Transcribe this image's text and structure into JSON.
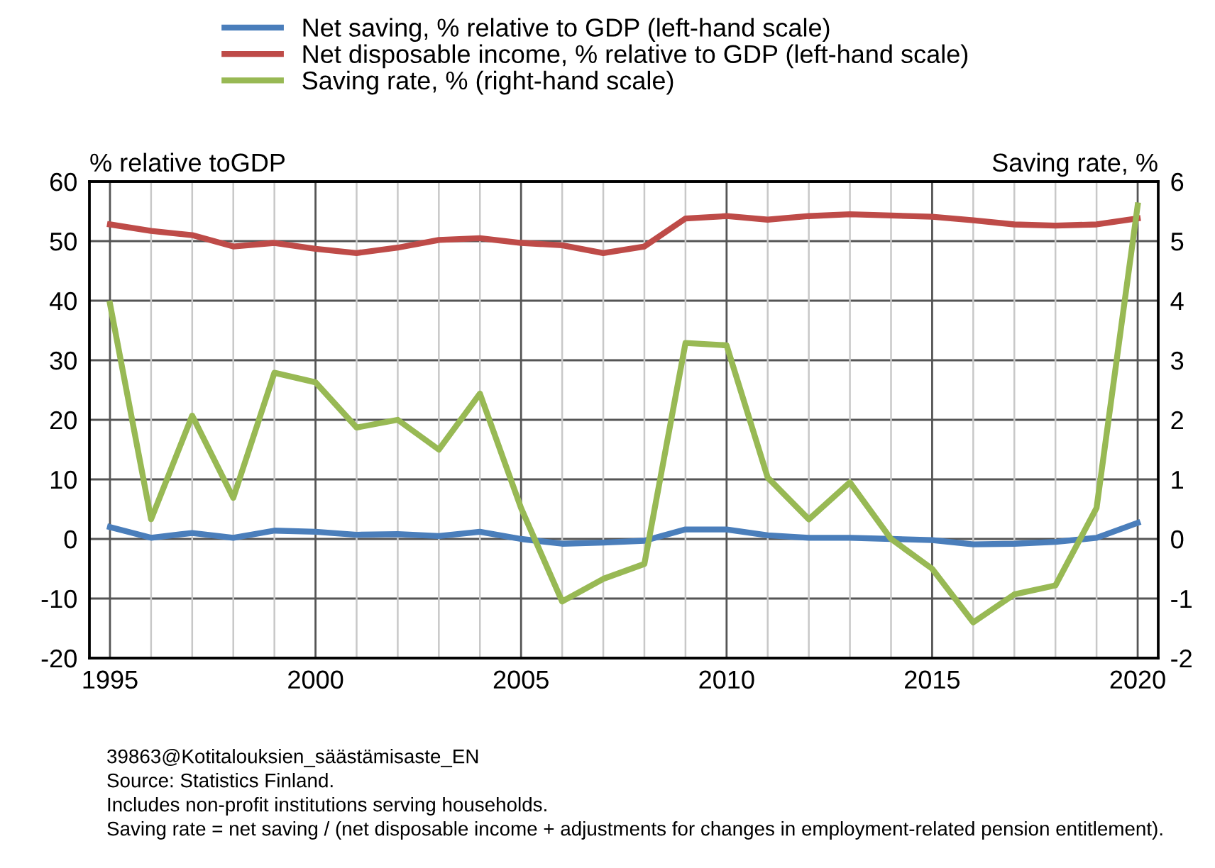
{
  "chart_data": {
    "type": "line",
    "ylabel": "% relative toGDP",
    "y2label": "Saving rate, %",
    "x": [
      1995,
      1996,
      1997,
      1998,
      1999,
      2000,
      2001,
      2002,
      2003,
      2004,
      2005,
      2006,
      2007,
      2008,
      2009,
      2010,
      2011,
      2012,
      2013,
      2014,
      2015,
      2016,
      2017,
      2018,
      2019,
      2020
    ],
    "series": [
      {
        "name": "Net saving, % relative to GDP (left-hand scale)",
        "color": "#4a7ebb",
        "values": [
          2.0,
          0.2,
          1.0,
          0.2,
          1.4,
          1.2,
          0.7,
          0.8,
          0.5,
          1.2,
          0.0,
          -0.8,
          -0.6,
          -0.3,
          1.6,
          1.6,
          0.6,
          0.2,
          0.2,
          0.0,
          -0.2,
          -0.9,
          -0.8,
          -0.5,
          0.2,
          2.7
        ]
      },
      {
        "name": "Net disposable income, % relative to GDP (left-hand scale)",
        "color": "#be4b48",
        "values": [
          52.8,
          51.7,
          51.0,
          49.1,
          49.7,
          48.7,
          48.0,
          48.9,
          50.2,
          50.5,
          49.7,
          49.3,
          48.0,
          49.1,
          53.8,
          54.2,
          53.6,
          54.2,
          54.5,
          54.3,
          54.1,
          53.5,
          52.8,
          52.6,
          52.8,
          53.8
        ]
      },
      {
        "name": "Saving rate, % (right-hand scale)",
        "color": "#98b954",
        "axis": "y2",
        "values": [
          3.95,
          0.33,
          2.07,
          0.69,
          2.79,
          2.63,
          1.87,
          2.0,
          1.5,
          2.44,
          0.52,
          -1.05,
          -0.67,
          -0.42,
          3.29,
          3.25,
          1.03,
          0.33,
          0.95,
          0.0,
          -0.5,
          -1.4,
          -0.93,
          -0.78,
          0.52,
          5.6
        ]
      }
    ],
    "xlim": [
      1994.5,
      2020.5
    ],
    "xticks": [
      1995,
      {
        "value": 1996,
        "label": null
      },
      {
        "value": 1997,
        "label": null
      },
      {
        "value": 1998,
        "label": null
      },
      {
        "value": 1999,
        "label": null
      },
      2000,
      {
        "value": 2001,
        "label": null
      },
      {
        "value": 2002,
        "label": null
      },
      {
        "value": 2003,
        "label": null
      },
      {
        "value": 2004,
        "label": null
      },
      2005,
      {
        "value": 2006,
        "label": null
      },
      {
        "value": 2007,
        "label": null
      },
      {
        "value": 2008,
        "label": null
      },
      {
        "value": 2009,
        "label": null
      },
      2010,
      {
        "value": 2011,
        "label": null
      },
      {
        "value": 2012,
        "label": null
      },
      {
        "value": 2013,
        "label": null
      },
      {
        "value": 2014,
        "label": null
      },
      2015,
      {
        "value": 2016,
        "label": null
      },
      {
        "value": 2017,
        "label": null
      },
      {
        "value": 2018,
        "label": null
      },
      {
        "value": 2019,
        "label": null
      },
      2020
    ],
    "ylim": [
      -20,
      60
    ],
    "yticks": [
      -20,
      -10,
      0,
      10,
      20,
      30,
      40,
      50,
      60
    ],
    "y2lim": [
      -2,
      6
    ],
    "y2ticks": [
      -2,
      -1,
      0,
      1,
      2,
      3,
      4,
      5,
      6
    ],
    "grid": true,
    "legend": "top",
    "line_style": "solid",
    "annotations": [
      "39863@Kotitalouksien_säästämisaste_EN",
      "Source: Statistics Finland.",
      "Includes non-profit institutions serving households.",
      "Saving rate = net saving / (net disposable income + adjustments for changes in employment-related pension entitlement)."
    ]
  }
}
